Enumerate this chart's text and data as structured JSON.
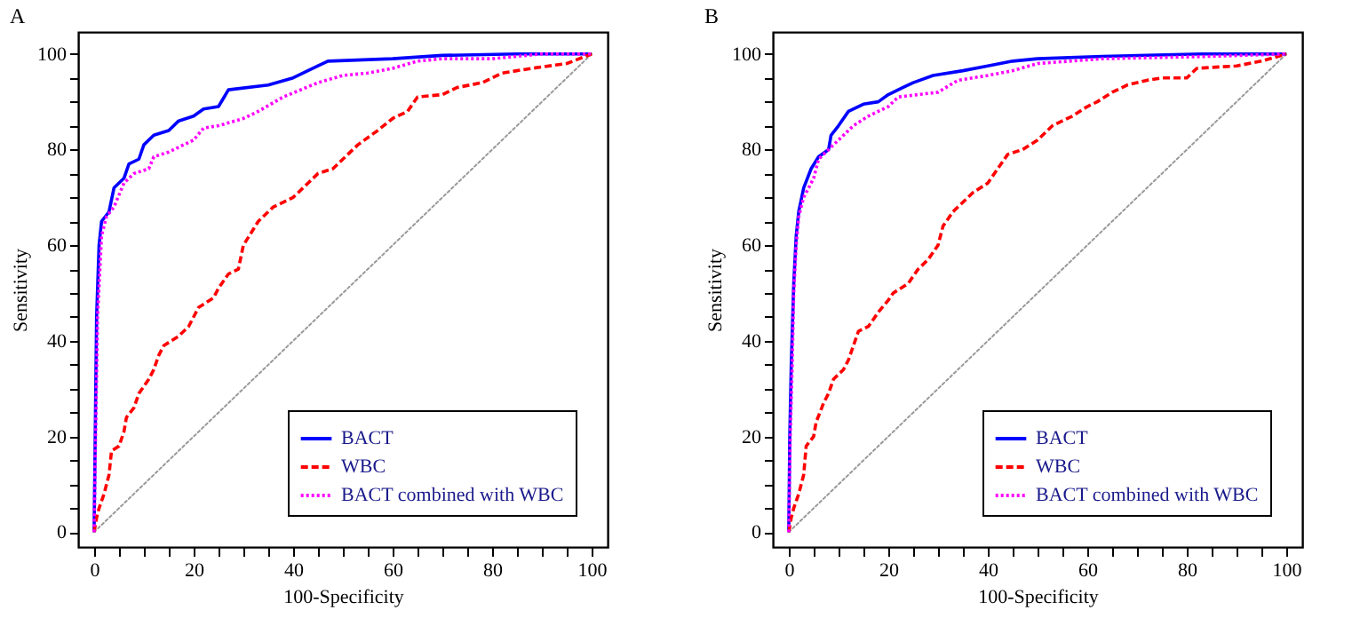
{
  "chart_data": [
    {
      "type": "line",
      "title": "A",
      "xlabel": "100-Specificity",
      "ylabel": "Sensitivity",
      "xlim": [
        -3.2,
        103.2
      ],
      "ylim": [
        -3.1,
        104.6
      ],
      "xticks": [
        0,
        {
          "value": 5,
          "label": null
        },
        {
          "value": 10,
          "label": null
        },
        {
          "value": 15,
          "label": null
        },
        20,
        {
          "value": 25,
          "label": null
        },
        {
          "value": 30,
          "label": null
        },
        {
          "value": 35,
          "label": null
        },
        40,
        {
          "value": 45,
          "label": null
        },
        {
          "value": 50,
          "label": null
        },
        {
          "value": 55,
          "label": null
        },
        60,
        {
          "value": 65,
          "label": null
        },
        {
          "value": 70,
          "label": null
        },
        {
          "value": 75,
          "label": null
        },
        80,
        {
          "value": 85,
          "label": null
        },
        {
          "value": 90,
          "label": null
        },
        {
          "value": 95,
          "label": null
        },
        100
      ],
      "yticks": [
        0,
        {
          "value": 5,
          "label": null
        },
        {
          "value": 10,
          "label": null
        },
        {
          "value": 15,
          "label": null
        },
        20,
        {
          "value": 25,
          "label": null
        },
        {
          "value": 30,
          "label": null
        },
        {
          "value": 35,
          "label": null
        },
        40,
        {
          "value": 45,
          "label": null
        },
        {
          "value": 50,
          "label": null
        },
        {
          "value": 55,
          "label": null
        },
        60,
        {
          "value": 65,
          "label": null
        },
        {
          "value": 70,
          "label": null
        },
        {
          "value": 75,
          "label": null
        },
        80,
        {
          "value": 85,
          "label": null
        },
        {
          "value": 90,
          "label": null
        },
        {
          "value": 95,
          "label": null
        },
        100
      ],
      "grid": false,
      "legend": "bottom right",
      "series": [
        {
          "color": "#999999",
          "line_style": "dotted",
          "x": [
            0,
            100
          ],
          "values": [
            0,
            100
          ]
        },
        {
          "name": "BACT",
          "color": "#0000ff",
          "line_style": "solid",
          "x": [
            0,
            0.2,
            0.5,
            1,
            1.5,
            3,
            4,
            6,
            7,
            9,
            10,
            12,
            15,
            17,
            20,
            22,
            25,
            27,
            35,
            40,
            45,
            47,
            60,
            70,
            85,
            100
          ],
          "values": [
            0,
            18,
            45,
            60,
            65,
            67,
            72,
            74,
            77,
            78,
            81,
            83,
            84,
            86,
            87,
            88.5,
            89,
            92.5,
            93.5,
            95,
            97.5,
            98.5,
            99,
            99.7,
            100,
            100
          ]
        },
        {
          "name": "WBC",
          "color": "#ff0000",
          "line_style": "dashed",
          "x": [
            0,
            0.5,
            1,
            2,
            3,
            3.5,
            5,
            6,
            6.5,
            8,
            9,
            11,
            12,
            13,
            14,
            17,
            19,
            20,
            21,
            24,
            25,
            27,
            29,
            30,
            33,
            36,
            40,
            43,
            45,
            48,
            50,
            53,
            57,
            60,
            63,
            65,
            70,
            73,
            78,
            80,
            82,
            88,
            95,
            100
          ],
          "values": [
            0,
            3,
            5,
            8,
            12,
            17,
            18,
            21,
            24,
            26,
            29,
            32,
            34,
            37,
            39,
            41,
            43,
            45,
            47,
            49,
            51,
            54,
            55,
            60,
            65,
            68,
            70,
            73,
            75,
            76,
            78,
            81,
            84,
            86.5,
            88,
            91,
            91.5,
            93,
            94,
            95,
            96,
            97,
            98,
            100
          ]
        },
        {
          "name": "BACT combined with WBC",
          "color": "#ff00ff",
          "line_style": "dotted",
          "x": [
            0,
            0.3,
            0.7,
            1.5,
            2.5,
            4,
            6,
            8,
            11,
            12,
            15,
            20,
            22,
            25,
            30,
            33,
            38,
            45,
            50,
            55,
            60,
            65,
            70,
            80,
            85,
            90,
            100
          ],
          "values": [
            0,
            20,
            45,
            62,
            66,
            68,
            73,
            75,
            76,
            78.5,
            79.5,
            82,
            84.5,
            85,
            86.5,
            88,
            91,
            94,
            95.5,
            96,
            97,
            98.5,
            99,
            99,
            99.5,
            100,
            100
          ]
        }
      ]
    },
    {
      "type": "line",
      "title": "B",
      "xlabel": "100-Specificity",
      "ylabel": "Sensitivity",
      "xlim": [
        -3.2,
        103.2
      ],
      "ylim": [
        -3.1,
        104.6
      ],
      "xticks": [
        0,
        {
          "value": 5,
          "label": null
        },
        {
          "value": 10,
          "label": null
        },
        {
          "value": 15,
          "label": null
        },
        20,
        {
          "value": 25,
          "label": null
        },
        {
          "value": 30,
          "label": null
        },
        {
          "value": 35,
          "label": null
        },
        40,
        {
          "value": 45,
          "label": null
        },
        {
          "value": 50,
          "label": null
        },
        {
          "value": 55,
          "label": null
        },
        60,
        {
          "value": 65,
          "label": null
        },
        {
          "value": 70,
          "label": null
        },
        {
          "value": 75,
          "label": null
        },
        80,
        {
          "value": 85,
          "label": null
        },
        {
          "value": 90,
          "label": null
        },
        {
          "value": 95,
          "label": null
        },
        100
      ],
      "yticks": [
        0,
        {
          "value": 5,
          "label": null
        },
        {
          "value": 10,
          "label": null
        },
        {
          "value": 15,
          "label": null
        },
        20,
        {
          "value": 25,
          "label": null
        },
        {
          "value": 30,
          "label": null
        },
        {
          "value": 35,
          "label": null
        },
        40,
        {
          "value": 45,
          "label": null
        },
        {
          "value": 50,
          "label": null
        },
        {
          "value": 55,
          "label": null
        },
        60,
        {
          "value": 65,
          "label": null
        },
        {
          "value": 70,
          "label": null
        },
        {
          "value": 75,
          "label": null
        },
        80,
        {
          "value": 85,
          "label": null
        },
        {
          "value": 90,
          "label": null
        },
        {
          "value": 95,
          "label": null
        },
        100
      ],
      "grid": false,
      "legend": "bottom right",
      "series": [
        {
          "color": "#999999",
          "line_style": "dotted",
          "x": [
            0,
            100
          ],
          "values": [
            0,
            100
          ]
        },
        {
          "name": "BACT",
          "color": "#0000ff",
          "line_style": "solid",
          "x": [
            0,
            0.2,
            0.5,
            1,
            1.5,
            2,
            3,
            4.5,
            6,
            8,
            8.5,
            10,
            12,
            15,
            18,
            20,
            23,
            25,
            29,
            35,
            40,
            45,
            50,
            63,
            83,
            100
          ],
          "values": [
            0,
            20,
            35,
            52,
            62,
            67,
            72,
            76,
            78.5,
            80,
            83,
            85,
            88,
            89.5,
            90,
            91.5,
            93,
            94,
            95.5,
            96.5,
            97.5,
            98.5,
            99,
            99.5,
            100,
            100
          ]
        },
        {
          "name": "WBC",
          "color": "#ff0000",
          "line_style": "dashed",
          "x": [
            0,
            0.5,
            1,
            2,
            3,
            3.5,
            5,
            5.5,
            7,
            8,
            9,
            11,
            12,
            13,
            14,
            16,
            18,
            20,
            21,
            24,
            26,
            28,
            30,
            31,
            33,
            35,
            37,
            40,
            42,
            44,
            47,
            50,
            53,
            57,
            60,
            62,
            65,
            68,
            72,
            75,
            80,
            82,
            90,
            95,
            100
          ],
          "values": [
            0,
            3,
            5,
            8,
            12,
            18,
            20,
            23,
            27,
            29,
            32,
            34,
            36,
            39,
            42,
            43,
            46,
            48.5,
            50,
            52,
            55,
            57,
            60,
            64,
            67,
            69,
            71,
            73,
            76,
            79,
            80,
            82,
            85,
            87,
            89,
            90,
            92,
            93.5,
            94.5,
            95,
            95,
            97,
            97.5,
            98.5,
            100
          ]
        },
        {
          "name": "BACT combined with WBC",
          "color": "#ff00ff",
          "line_style": "dotted",
          "x": [
            0,
            0.3,
            0.7,
            1,
            1.5,
            2,
            3,
            5,
            6,
            8,
            10,
            13,
            16,
            20,
            22,
            30,
            34,
            40,
            45,
            50,
            63,
            85,
            100
          ],
          "values": [
            0,
            20,
            35,
            50,
            60,
            66,
            70,
            74,
            78,
            80,
            82,
            85,
            87,
            89,
            91,
            92,
            94.5,
            95.5,
            96.5,
            98,
            99,
            99.5,
            100
          ]
        }
      ]
    }
  ]
}
